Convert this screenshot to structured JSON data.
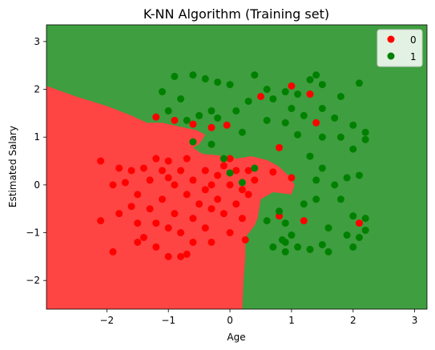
{
  "chart_data": {
    "type": "scatter",
    "title": "K-NN Algorithm (Training set)",
    "xlabel": "Age",
    "ylabel": "Estimated Salary",
    "xlim": [
      -2.98,
      3.2
    ],
    "ylim": [
      -2.6,
      3.35
    ],
    "xticks": [
      -2,
      -1,
      0,
      1,
      2,
      3
    ],
    "yticks": [
      -2,
      -1,
      0,
      1,
      2,
      3
    ],
    "grid": false,
    "legend_position": "top-right",
    "background_regions": [
      {
        "class": "0",
        "color": "#ff4444"
      },
      {
        "class": "1",
        "color": "#3f9e3f"
      }
    ],
    "decision_boundary": [
      [
        -2.98,
        2.07
      ],
      [
        -2.5,
        1.85
      ],
      [
        -2.0,
        1.65
      ],
      [
        -1.6,
        1.45
      ],
      [
        -1.35,
        1.3
      ],
      [
        -1.1,
        1.3
      ],
      [
        -0.75,
        1.2
      ],
      [
        -0.55,
        1.15
      ],
      [
        -0.4,
        1.05
      ],
      [
        -0.5,
        0.85
      ],
      [
        -0.6,
        0.78
      ],
      [
        -0.45,
        0.65
      ],
      [
        -0.2,
        0.62
      ],
      [
        0.1,
        0.55
      ],
      [
        0.35,
        0.6
      ],
      [
        0.6,
        0.52
      ],
      [
        0.78,
        0.4
      ],
      [
        0.95,
        0.2
      ],
      [
        1.05,
        0.0
      ],
      [
        1.0,
        -0.2
      ],
      [
        0.7,
        -0.15
      ],
      [
        0.5,
        -0.3
      ],
      [
        0.45,
        -0.7
      ],
      [
        0.4,
        -0.85
      ],
      [
        0.25,
        -1.1
      ],
      [
        0.25,
        -1.5
      ],
      [
        0.22,
        -2.0
      ],
      [
        0.2,
        -2.6
      ]
    ],
    "series": [
      {
        "name": "0",
        "color": "#ff0000",
        "points": [
          [
            -2.1,
            0.5
          ],
          [
            -2.1,
            -0.75
          ],
          [
            -1.9,
            -1.4
          ],
          [
            -1.8,
            0.35
          ],
          [
            -1.8,
            -0.6
          ],
          [
            -1.7,
            0.05
          ],
          [
            -1.6,
            -0.45
          ],
          [
            -1.6,
            0.3
          ],
          [
            -1.5,
            -1.2
          ],
          [
            -1.5,
            -0.2
          ],
          [
            -1.4,
            0.35
          ],
          [
            -1.4,
            -1.1
          ],
          [
            -1.3,
            0.1
          ],
          [
            -1.3,
            -0.5
          ],
          [
            -1.2,
            0.55
          ],
          [
            -1.2,
            -0.8
          ],
          [
            -1.2,
            -1.3
          ],
          [
            -1.1,
            0.3
          ],
          [
            -1.1,
            -0.3
          ],
          [
            -1.0,
            0.5
          ],
          [
            -1.0,
            -0.9
          ],
          [
            -1.0,
            -1.5
          ],
          [
            -0.9,
            0.0
          ],
          [
            -0.9,
            -0.6
          ],
          [
            -0.8,
            0.3
          ],
          [
            -0.8,
            -1.0
          ],
          [
            -0.8,
            -1.5
          ],
          [
            -0.7,
            0.55
          ],
          [
            -0.7,
            -0.2
          ],
          [
            -0.6,
            0.1
          ],
          [
            -0.6,
            -0.7
          ],
          [
            -0.6,
            -1.2
          ],
          [
            -0.5,
            -0.4
          ],
          [
            -0.4,
            0.3
          ],
          [
            -0.4,
            -0.9
          ],
          [
            -0.3,
            0.0
          ],
          [
            -0.3,
            -0.5
          ],
          [
            -0.3,
            -1.2
          ],
          [
            -0.2,
            0.2
          ],
          [
            -0.2,
            -0.3
          ],
          [
            -0.1,
            -0.6
          ],
          [
            -0.1,
            0.4
          ],
          [
            0.0,
            0.0
          ],
          [
            0.0,
            -1.0
          ],
          [
            0.1,
            0.3
          ],
          [
            0.1,
            -0.4
          ],
          [
            0.2,
            -0.1
          ],
          [
            0.2,
            -0.7
          ],
          [
            0.3,
            0.3
          ],
          [
            0.3,
            -0.2
          ],
          [
            0.4,
            0.1
          ],
          [
            -1.2,
            1.42
          ],
          [
            -0.9,
            1.35
          ],
          [
            -0.6,
            1.27
          ],
          [
            0.5,
            1.85
          ],
          [
            1.0,
            2.07
          ],
          [
            1.3,
            1.9
          ],
          [
            1.4,
            1.3
          ],
          [
            0.8,
            0.78
          ],
          [
            0.7,
            0.27
          ],
          [
            1.0,
            0.15
          ],
          [
            0.8,
            -0.65
          ],
          [
            1.2,
            -0.75
          ],
          [
            2.1,
            -0.8
          ],
          [
            -1.9,
            0.0
          ],
          [
            -1.0,
            0.15
          ],
          [
            -0.4,
            -0.1
          ],
          [
            0.0,
            0.55
          ],
          [
            -1.5,
            -0.8
          ],
          [
            -0.7,
            -1.45
          ],
          [
            0.25,
            -1.15
          ],
          [
            -0.3,
            1.2
          ],
          [
            -0.05,
            1.25
          ]
        ]
      },
      {
        "name": "1",
        "color": "#008000",
        "points": [
          [
            -1.1,
            1.95
          ],
          [
            -0.9,
            2.27
          ],
          [
            -0.6,
            2.3
          ],
          [
            -0.4,
            2.22
          ],
          [
            -0.2,
            2.15
          ],
          [
            0.0,
            2.1
          ],
          [
            0.4,
            2.3
          ],
          [
            0.6,
            2.0
          ],
          [
            0.9,
            1.95
          ],
          [
            1.1,
            1.9
          ],
          [
            1.3,
            2.2
          ],
          [
            1.4,
            2.3
          ],
          [
            1.5,
            2.1
          ],
          [
            1.8,
            1.85
          ],
          [
            2.1,
            2.13
          ],
          [
            -1.0,
            1.55
          ],
          [
            -0.8,
            1.8
          ],
          [
            -0.5,
            1.45
          ],
          [
            -0.2,
            1.4
          ],
          [
            0.1,
            1.55
          ],
          [
            0.3,
            1.75
          ],
          [
            0.7,
            1.8
          ],
          [
            1.0,
            1.6
          ],
          [
            1.2,
            1.45
          ],
          [
            1.5,
            1.6
          ],
          [
            1.7,
            1.4
          ],
          [
            2.0,
            1.25
          ],
          [
            2.2,
            1.1
          ],
          [
            -0.7,
            1.35
          ],
          [
            -0.3,
            1.55
          ],
          [
            0.2,
            1.1
          ],
          [
            0.6,
            1.35
          ],
          [
            0.9,
            1.3
          ],
          [
            1.1,
            1.05
          ],
          [
            1.5,
            1.0
          ],
          [
            1.8,
            1.0
          ],
          [
            2.0,
            0.75
          ],
          [
            2.2,
            0.95
          ],
          [
            1.3,
            0.6
          ],
          [
            1.5,
            0.35
          ],
          [
            1.7,
            0.0
          ],
          [
            1.9,
            0.15
          ],
          [
            2.1,
            0.2
          ],
          [
            1.4,
            -0.3
          ],
          [
            1.6,
            -0.9
          ],
          [
            1.8,
            -0.3
          ],
          [
            2.0,
            -0.65
          ],
          [
            2.2,
            -0.7
          ],
          [
            0.7,
            -1.3
          ],
          [
            0.9,
            -1.2
          ],
          [
            1.0,
            -1.05
          ],
          [
            1.1,
            -1.3
          ],
          [
            1.3,
            -1.35
          ],
          [
            1.5,
            -1.25
          ],
          [
            1.6,
            -1.4
          ],
          [
            1.9,
            -1.05
          ],
          [
            2.0,
            -1.3
          ],
          [
            2.1,
            -1.1
          ],
          [
            2.2,
            -0.95
          ],
          [
            0.6,
            -0.75
          ],
          [
            0.8,
            -0.55
          ],
          [
            0.9,
            -0.8
          ],
          [
            1.2,
            -0.4
          ],
          [
            1.4,
            0.1
          ],
          [
            0.4,
            0.35
          ],
          [
            0.2,
            0.05
          ],
          [
            0.0,
            0.25
          ],
          [
            -0.1,
            0.55
          ],
          [
            -0.3,
            0.85
          ],
          [
            -0.6,
            0.9
          ],
          [
            0.9,
            -1.4
          ],
          [
            0.85,
            -1.15
          ]
        ]
      }
    ]
  }
}
